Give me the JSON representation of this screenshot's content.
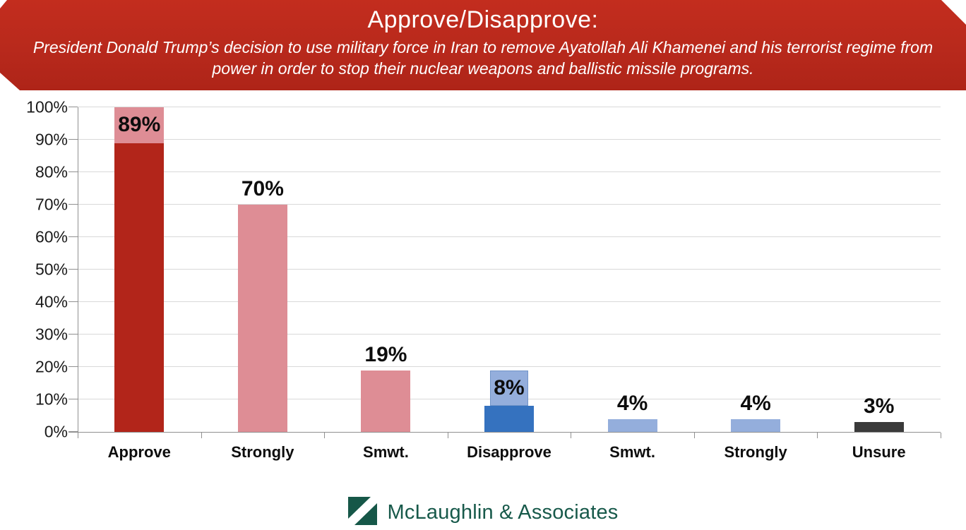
{
  "header": {
    "title": "Approve/Disapprove:",
    "subtitle": "President Donald Trump’s decision to use military force in Iran to remove Ayatollah Ali Khamenei and his terrorist regime from power in order to stop their nuclear weapons and ballistic missile programs.",
    "background_color": "#B8291C",
    "text_color": "#FFFFFF"
  },
  "chart_data": {
    "type": "bar",
    "title": "Approve/Disapprove:",
    "categories": [
      "Approve",
      "Strongly",
      "Smwt.",
      "Disapprove",
      "Smwt.",
      "Strongly",
      "Unsure"
    ],
    "values": [
      89,
      70,
      19,
      8,
      4,
      4,
      3
    ],
    "labels": [
      "89%",
      "70%",
      "19%",
      "8%",
      "4%",
      "4%",
      "3%"
    ],
    "bar_colors": [
      "#B2251A",
      "#DE8D95",
      "#DE8D95",
      "#3572BF",
      "#94AEDC",
      "#94AEDC",
      "#3A3A3A"
    ],
    "label_boxes": [
      {
        "fill": "#DE8D95",
        "width": 70,
        "border": "none"
      },
      null,
      null,
      {
        "fill": "#94AEDC",
        "width": 54,
        "border": "#7194C8"
      },
      null,
      null,
      null
    ],
    "yticks": [
      "0%",
      "10%",
      "20%",
      "30%",
      "40%",
      "50%",
      "60%",
      "70%",
      "80%",
      "90%",
      "100%"
    ],
    "ylim": [
      0,
      100
    ],
    "grid": true,
    "legend": false,
    "gridline_color": "#D9D9D9",
    "axis_color": "#909090"
  },
  "footer": {
    "brand": "McLaughlin & Associates",
    "logo_color": "#165748",
    "text_color": "#17594A"
  }
}
